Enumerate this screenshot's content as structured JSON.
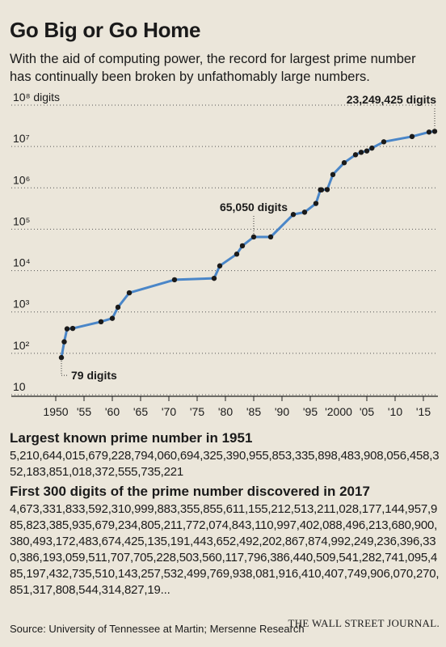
{
  "title": "Go Big or Go Home",
  "subtitle": "With the aid of computing power, the record for largest prime number has continually been broken by unfathomably large numbers.",
  "chart_data": {
    "type": "line",
    "title": "Go Big or Go Home",
    "xlabel": "",
    "ylabel": "",
    "y_scale": "log",
    "ylim": [
      10,
      100000000
    ],
    "xlim": [
      1949,
      2017
    ],
    "y_tick_labels": [
      "10",
      "10²",
      "10³",
      "10⁴",
      "10⁵",
      "10⁶",
      "10⁷",
      "10⁸ digits"
    ],
    "y_tick_values": [
      10,
      100,
      1000,
      10000,
      100000,
      1000000,
      10000000,
      100000000
    ],
    "x_tick_labels": [
      "1950",
      "'55",
      "'60",
      "'65",
      "'70",
      "'75",
      "'80",
      "'85",
      "'90",
      "'95",
      "'2000",
      "'05",
      "'10",
      "'15"
    ],
    "x_tick_values": [
      1950,
      1955,
      1960,
      1965,
      1970,
      1975,
      1980,
      1985,
      1990,
      1995,
      2000,
      2005,
      2010,
      2015
    ],
    "grid": "dotted horizontal",
    "series": [
      {
        "color": "#4a86c8",
        "points": [
          {
            "x": 1951,
            "y": 79
          },
          {
            "x": 1951.5,
            "y": 190
          },
          {
            "x": 1952,
            "y": 390
          },
          {
            "x": 1953,
            "y": 400
          },
          {
            "x": 1958,
            "y": 580
          },
          {
            "x": 1960,
            "y": 700
          },
          {
            "x": 1961,
            "y": 1300
          },
          {
            "x": 1963,
            "y": 2900
          },
          {
            "x": 1971,
            "y": 6000
          },
          {
            "x": 1978,
            "y": 6500
          },
          {
            "x": 1979,
            "y": 13000
          },
          {
            "x": 1982,
            "y": 25000
          },
          {
            "x": 1983,
            "y": 39700
          },
          {
            "x": 1985,
            "y": 65050
          },
          {
            "x": 1988,
            "y": 65100
          },
          {
            "x": 1992,
            "y": 227000
          },
          {
            "x": 1994,
            "y": 258000
          },
          {
            "x": 1996,
            "y": 420000
          },
          {
            "x": 1996.8,
            "y": 895000
          },
          {
            "x": 1997,
            "y": 895900
          },
          {
            "x": 1998,
            "y": 909500
          },
          {
            "x": 1999,
            "y": 2098000
          },
          {
            "x": 2001,
            "y": 4050000
          },
          {
            "x": 2003,
            "y": 6320000
          },
          {
            "x": 2004,
            "y": 7240000
          },
          {
            "x": 2005,
            "y": 7800000
          },
          {
            "x": 2005.9,
            "y": 9150000
          },
          {
            "x": 2008,
            "y": 12980000
          },
          {
            "x": 2013,
            "y": 17420000
          },
          {
            "x": 2016,
            "y": 22340000
          },
          {
            "x": 2017,
            "y": 23249425
          }
        ]
      }
    ],
    "annotations": [
      {
        "text": "23,249,425 digits",
        "x": 2017,
        "y": 23249425
      },
      {
        "text": "65,050 digits",
        "x": 1985,
        "y": 65050
      },
      {
        "text": "79 digits",
        "x": 1951,
        "y": 79
      }
    ]
  },
  "sections": {
    "first_head": "Largest known prime number in 1951",
    "first_digits": "5,210,644,015,679,228,794,060,694,325,390,955,853,335,898,483,908,056,458,352,183,851,018,372,555,735,221",
    "second_head": "First 300 digits of the prime number discovered in 2017",
    "second_digits": "4,673,331,833,592,310,999,883,355,855,611,155,212,513,211,028,177,144,957,985,823,385,935,679,234,805,211,772,074,843,110,997,402,088,496,213,680,900,380,493,172,483,674,425,135,191,443,652,492,202,867,874,992,249,236,396,330,386,193,059,511,707,705,228,503,560,117,796,386,440,509,541,282,741,095,485,197,432,735,510,143,257,532,499,769,938,081,916,410,407,749,906,070,270,851,317,808,544,314,827,19..."
  },
  "source": "Source: University of Tennessee at Martin; Mersenne Research",
  "brand": "THE WALL STREET JOURNAL."
}
